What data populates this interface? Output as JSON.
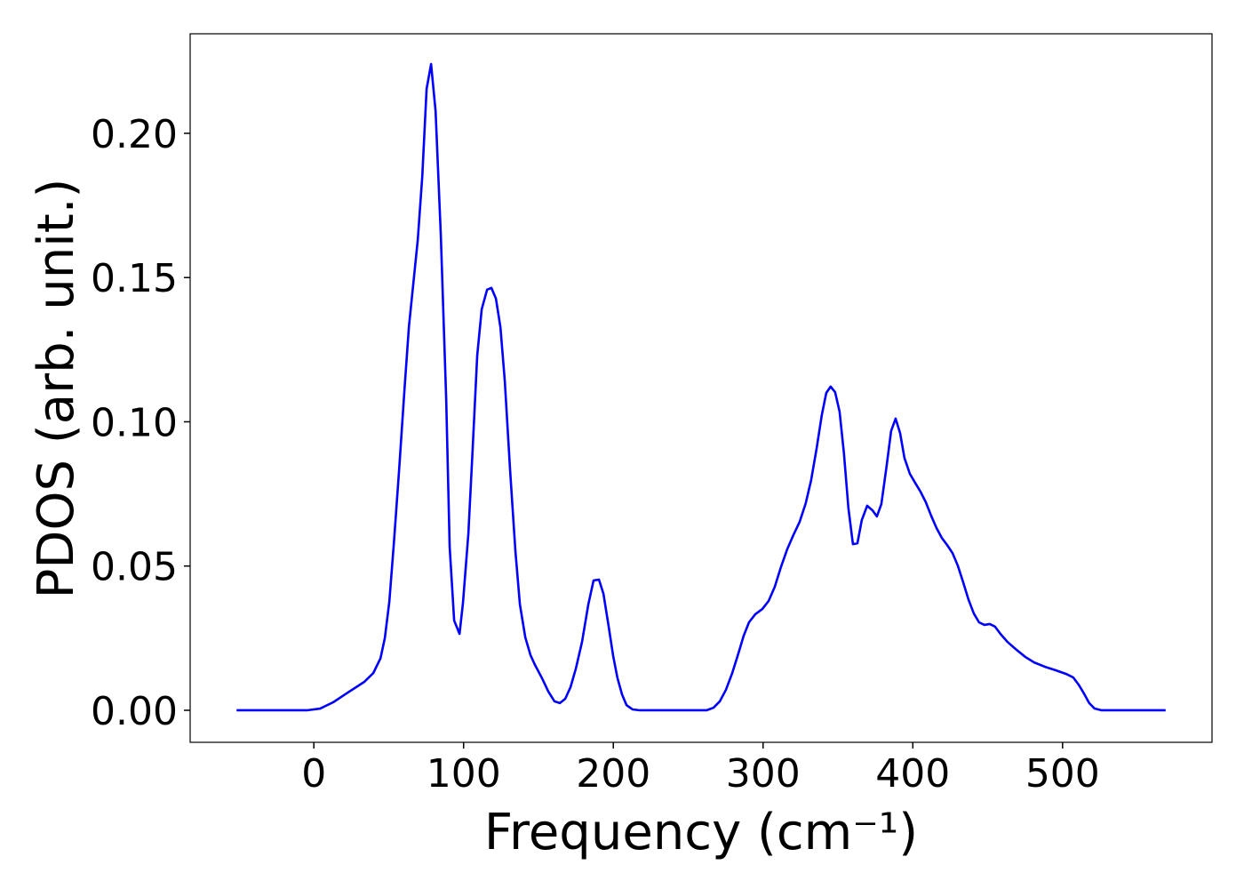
{
  "chart_data": {
    "type": "line",
    "xlabel": "Frequency (cm⁻¹)",
    "ylabel": "PDOS (arb. unit.)",
    "color": "#0000ff",
    "x": [
      -51.6,
      -4.7,
      4.2,
      13,
      22,
      33.8,
      39.7,
      44.5,
      47.4,
      50.4,
      53.4,
      56.9,
      60.5,
      63.5,
      69.4,
      72.4,
      75.3,
      78.3,
      81.3,
      84.8,
      88.4,
      90.7,
      93.7,
      97.3,
      99.6,
      103.2,
      106.2,
      109.1,
      112.1,
      115.7,
      118.6,
      121.6,
      124.6,
      127.5,
      131.1,
      134.6,
      137.6,
      141.2,
      144.7,
      147.7,
      152.4,
      156.6,
      160.7,
      164.3,
      167.9,
      171.4,
      175,
      179.1,
      183.3,
      186.8,
      190.4,
      193.4,
      196.9,
      199.9,
      202.8,
      205.8,
      208.8,
      212.9,
      217.7,
      262.2,
      266.9,
      271.1,
      275.2,
      279.4,
      283.5,
      287.1,
      290.6,
      294.8,
      299.5,
      303.7,
      307.8,
      311.9,
      316.1,
      320.2,
      324.4,
      328.5,
      332.1,
      335.7,
      339.2,
      342.2,
      345.1,
      348.1,
      351.1,
      354,
      357,
      360,
      363,
      365.9,
      369.5,
      373.1,
      376,
      379,
      382.6,
      385.5,
      388.5,
      391.5,
      394.4,
      398,
      401.5,
      405.1,
      408.7,
      412.2,
      415.8,
      419.3,
      422.9,
      426.5,
      430,
      433.6,
      437.1,
      440.7,
      444.2,
      447.8,
      451.4,
      454.9,
      458.5,
      463.2,
      469.2,
      475.1,
      481,
      488.1,
      495.3,
      502.4,
      507.1,
      510.7,
      514.2,
      517.8,
      521.4,
      526.1,
      568.8
    ],
    "values": [
      0,
      0,
      0.0006,
      0.0028,
      0.0059,
      0.0099,
      0.0129,
      0.018,
      0.025,
      0.0376,
      0.0576,
      0.083,
      0.111,
      0.133,
      0.163,
      0.185,
      0.2154,
      0.224,
      0.2077,
      0.1646,
      0.1076,
      0.0567,
      0.0311,
      0.0265,
      0.0373,
      0.0613,
      0.0921,
      0.123,
      0.139,
      0.1458,
      0.1464,
      0.1427,
      0.1328,
      0.1143,
      0.0829,
      0.0552,
      0.0367,
      0.0253,
      0.0191,
      0.0157,
      0.0111,
      0.0065,
      0.0031,
      0.0025,
      0.004,
      0.008,
      0.0145,
      0.0237,
      0.0367,
      0.045,
      0.0453,
      0.0404,
      0.029,
      0.0188,
      0.0111,
      0.0055,
      0.0018,
      0.0003,
      0,
      0,
      0.0009,
      0.0031,
      0.0071,
      0.0129,
      0.0197,
      0.0259,
      0.0305,
      0.0333,
      0.0351,
      0.0379,
      0.0428,
      0.0496,
      0.0558,
      0.0607,
      0.0653,
      0.0718,
      0.0798,
      0.0906,
      0.1023,
      0.11,
      0.1122,
      0.1103,
      0.1035,
      0.0891,
      0.07,
      0.0576,
      0.0579,
      0.0659,
      0.0709,
      0.0693,
      0.0672,
      0.0715,
      0.0851,
      0.0968,
      0.1011,
      0.0961,
      0.0875,
      0.082,
      0.0789,
      0.0758,
      0.0721,
      0.0675,
      0.0632,
      0.0598,
      0.0573,
      0.0545,
      0.0502,
      0.0444,
      0.0385,
      0.0336,
      0.0305,
      0.0296,
      0.0299,
      0.029,
      0.0265,
      0.0237,
      0.021,
      0.0185,
      0.0166,
      0.0151,
      0.0139,
      0.0126,
      0.0114,
      0.0089,
      0.0059,
      0.0025,
      0.0006,
      0,
      0
    ],
    "xlim": [
      -82.6,
      599.8
    ],
    "ylim": [
      -0.0111,
      0.2345
    ],
    "xticks": [
      0,
      100,
      200,
      300,
      400,
      500
    ],
    "yticks": [
      {
        "value": 0,
        "label": "0.00"
      },
      0.05,
      {
        "value": 0.1,
        "label": "0.10"
      },
      0.15,
      {
        "value": 0.2,
        "label": "0.20"
      }
    ],
    "grid": false
  }
}
